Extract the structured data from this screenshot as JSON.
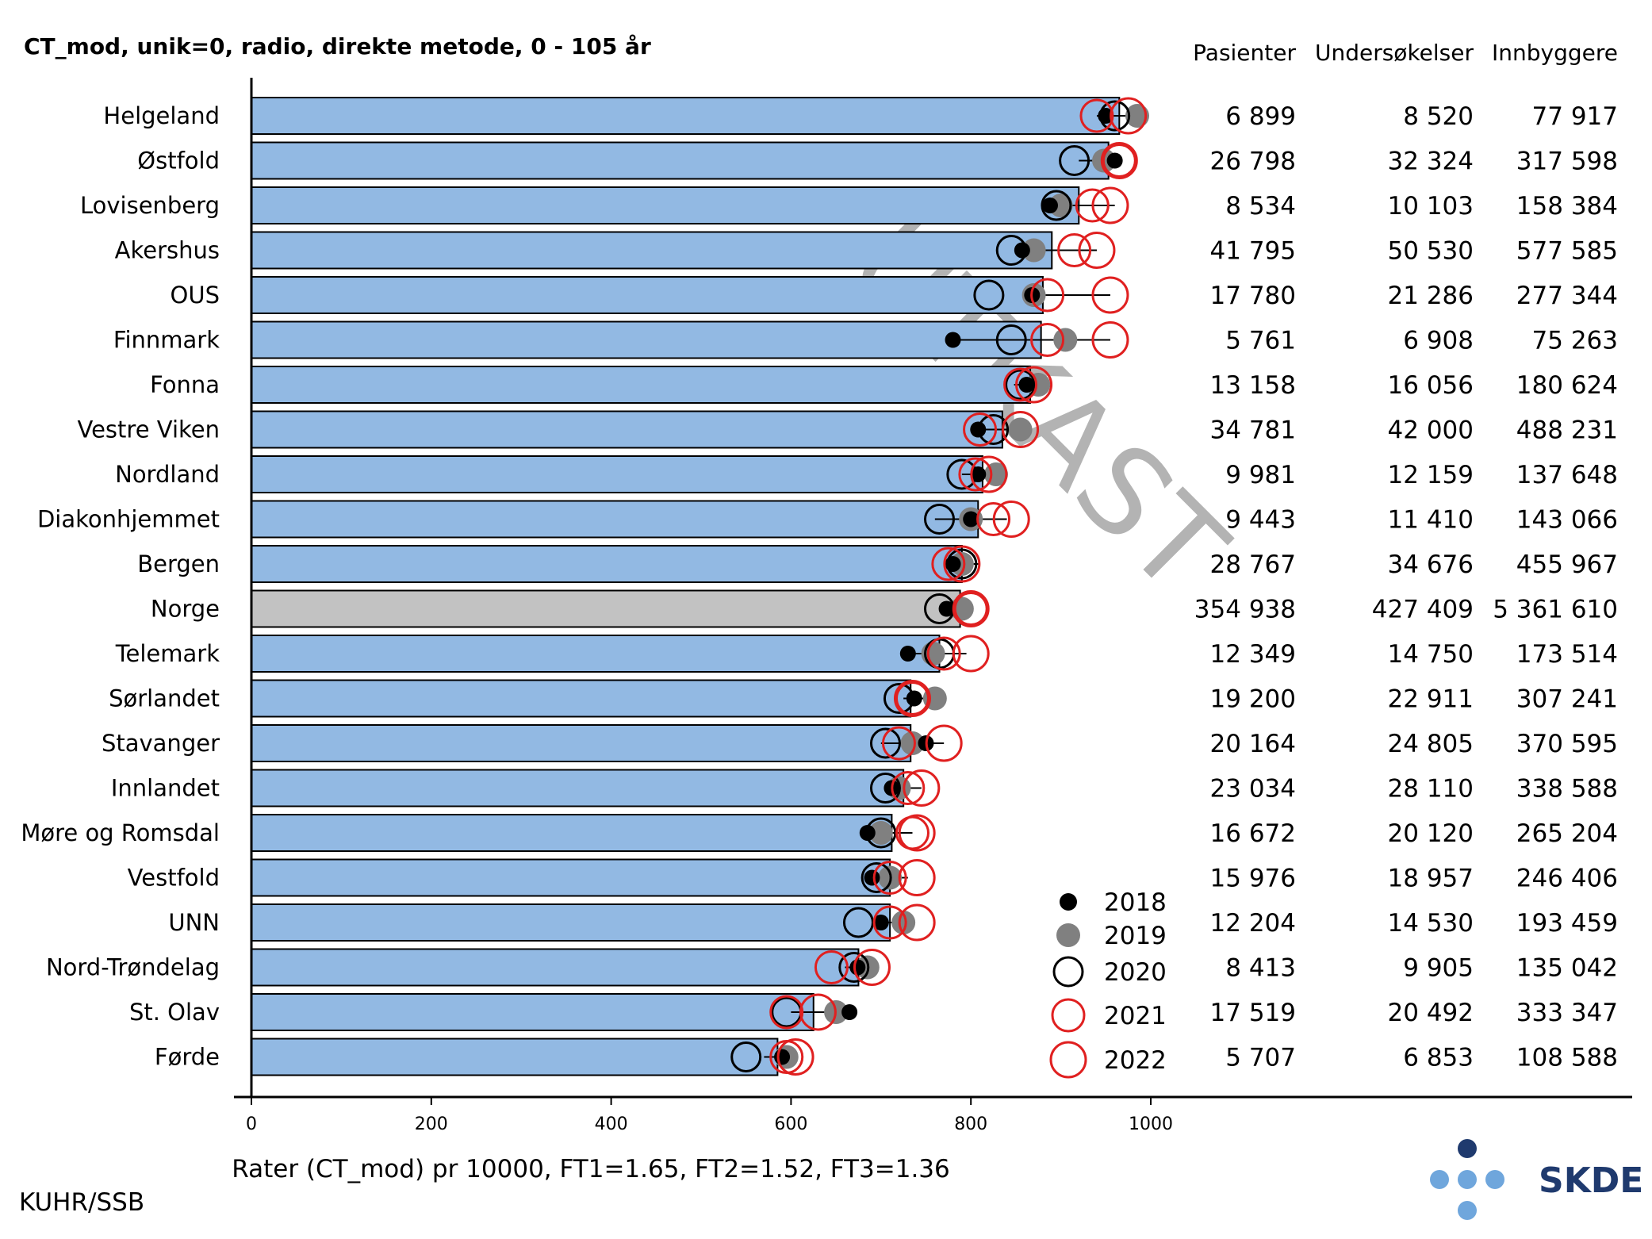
{
  "title": "CT_mod, unik=0, radio, direkte metode, 0 - 105 år",
  "watermark": "UTKAST",
  "source": "KUHR/SSB",
  "logo": {
    "text": "SKDE",
    "dark": "#1f3a6e",
    "light": "#6fa6dc"
  },
  "columns": [
    "Pasienter",
    "Undersøkelser",
    "Innbyggere"
  ],
  "colors": {
    "bar": "#92b9e3",
    "bar_national": "#c2c2c2",
    "y2018": "#000000",
    "y2019": "#808080",
    "y2020": "#000000",
    "y2021": "#e02020",
    "y2022": "#e02020"
  },
  "chart_data": {
    "type": "bar",
    "orientation": "horizontal",
    "xlabel": "Rater (CT_mod) pr 10000, FT1=1.65, FT2=1.52, FT3=1.36",
    "xlim": [
      0,
      1000
    ],
    "xticks": [
      0,
      200,
      400,
      600,
      800,
      1000
    ],
    "legend": {
      "position": "bottom-right",
      "entries": [
        "2018",
        "2019",
        "2020",
        "2021",
        "2022"
      ]
    },
    "categories": [
      "Helgeland",
      "Østfold",
      "Lovisenberg",
      "Akershus",
      "OUS",
      "Finnmark",
      "Fonna",
      "Vestre Viken",
      "Nordland",
      "Diakonhjemmet",
      "Bergen",
      "Norge",
      "Telemark",
      "Sørlandet",
      "Stavanger",
      "Innlandet",
      "Møre og Romsdal",
      "Vestfold",
      "UNN",
      "Nord-Trøndelag",
      "St. Olav",
      "Førde"
    ],
    "highlight": "Norge",
    "values": [
      965,
      953,
      920,
      890,
      880,
      878,
      866,
      835,
      813,
      808,
      790,
      788,
      765,
      733,
      733,
      725,
      712,
      710,
      710,
      675,
      625,
      585
    ],
    "years": {
      "2018": [
        950,
        960,
        888,
        857,
        868,
        780,
        862,
        808,
        808,
        800,
        780,
        773,
        730,
        737,
        750,
        712,
        685,
        690,
        700,
        674,
        665,
        590
      ],
      "2019": [
        985,
        948,
        900,
        870,
        870,
        905,
        875,
        855,
        828,
        800,
        790,
        790,
        758,
        760,
        735,
        720,
        700,
        710,
        725,
        685,
        650,
        595
      ],
      "2020": [
        960,
        915,
        895,
        845,
        820,
        845,
        855,
        825,
        790,
        765,
        790,
        765,
        765,
        720,
        705,
        705,
        700,
        695,
        675,
        670,
        595,
        550
      ],
      "2021": [
        940,
        965,
        935,
        915,
        885,
        885,
        855,
        810,
        805,
        825,
        775,
        800,
        770,
        735,
        720,
        730,
        735,
        710,
        710,
        645,
        595,
        595
      ],
      "2022": [
        975,
        965,
        955,
        940,
        955,
        955,
        870,
        855,
        820,
        845,
        790,
        800,
        800,
        735,
        770,
        745,
        740,
        740,
        740,
        690,
        630,
        605
      ]
    },
    "ci": [
      [
        940,
        980
      ],
      [
        920,
        960
      ],
      [
        880,
        960
      ],
      [
        850,
        940
      ],
      [
        860,
        955
      ],
      [
        780,
        955
      ],
      [
        848,
        880
      ],
      [
        810,
        865
      ],
      [
        790,
        830
      ],
      [
        760,
        840
      ],
      [
        775,
        810
      ],
      [
        770,
        800
      ],
      [
        730,
        795
      ],
      [
        725,
        760
      ],
      [
        700,
        770
      ],
      [
        705,
        745
      ],
      [
        690,
        735
      ],
      [
        700,
        730
      ],
      [
        690,
        725
      ],
      [
        660,
        690
      ],
      [
        600,
        665
      ],
      [
        570,
        605
      ]
    ],
    "pasienter": [
      "6 899",
      "26 798",
      "8 534",
      "41 795",
      "17 780",
      "5 761",
      "13 158",
      "34 781",
      "9 981",
      "9 443",
      "28 767",
      "354 938",
      "12 349",
      "19 200",
      "20 164",
      "23 034",
      "16 672",
      "15 976",
      "12 204",
      "8 413",
      "17 519",
      "5 707"
    ],
    "undersokelser": [
      "8 520",
      "32 324",
      "10 103",
      "50 530",
      "21 286",
      "6 908",
      "16 056",
      "42 000",
      "12 159",
      "11 410",
      "34 676",
      "427 409",
      "14 750",
      "22 911",
      "24 805",
      "28 110",
      "20 120",
      "18 957",
      "14 530",
      "9 905",
      "20 492",
      "6 853"
    ],
    "innbyggere": [
      "77 917",
      "317 598",
      "158 384",
      "577 585",
      "277 344",
      "75 263",
      "180 624",
      "488 231",
      "137 648",
      "143 066",
      "455 967",
      "5 361 610",
      "173 514",
      "307 241",
      "370 595",
      "338 588",
      "265 204",
      "246 406",
      "193 459",
      "135 042",
      "333 347",
      "108 588"
    ]
  }
}
